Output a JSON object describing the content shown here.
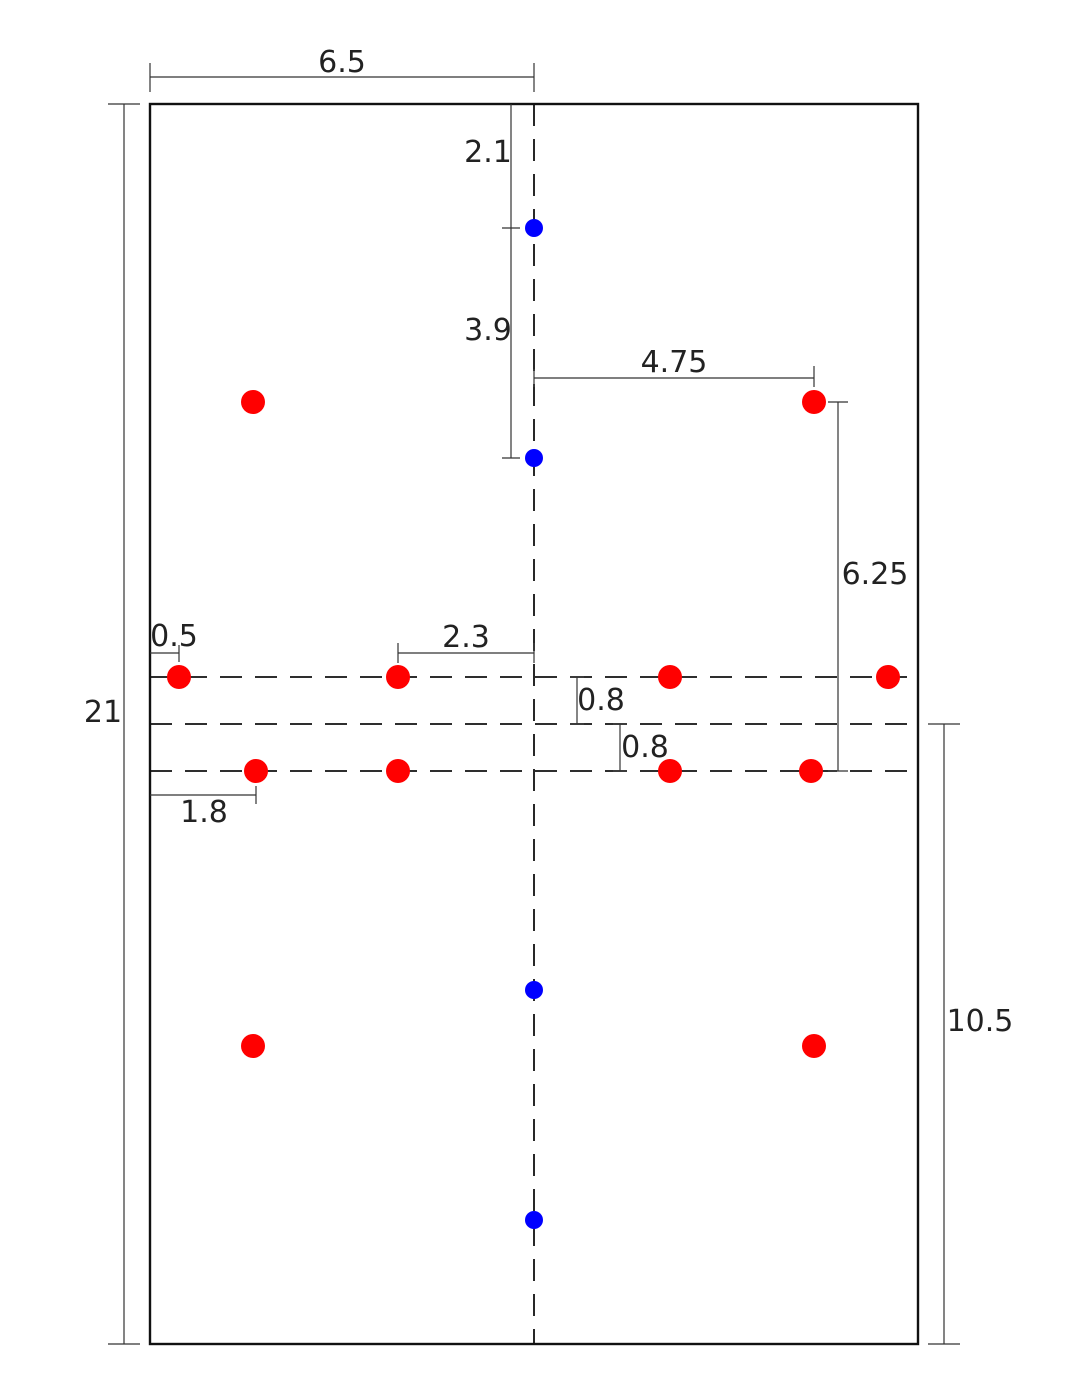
{
  "colors": {
    "background": "#ffffff",
    "outline": "#111111",
    "red_point": "#ff0000",
    "blue_point": "#0000ff"
  },
  "labels": {
    "total_height": "21",
    "half_width": "6.5",
    "top_to_first_blue": "2.1",
    "blue_spacing": "3.9",
    "red_offset_x": "4.75",
    "red_vertical_gap": "6.25",
    "edge_margin": "0.5",
    "inner_offset": "2.3",
    "row_gap_upper": "0.8",
    "row_gap_lower": "0.8",
    "edge_offset_lower": "1.8",
    "half_height": "10.5"
  }
}
